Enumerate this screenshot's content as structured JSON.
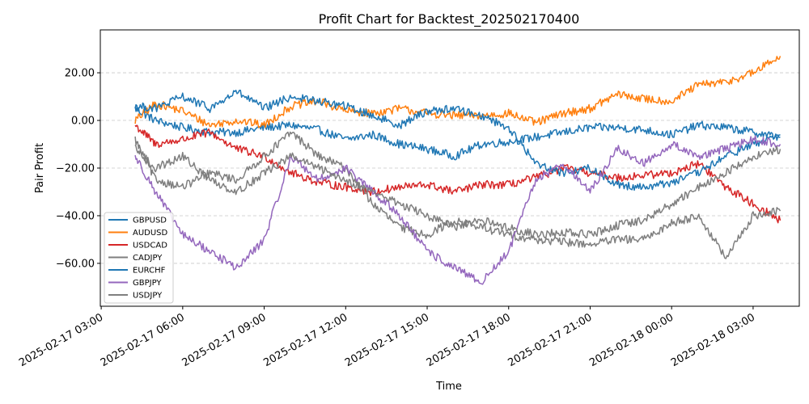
{
  "chart_data": {
    "type": "line",
    "title": "Profit Chart for Backtest_202502170400",
    "xlabel": "Time",
    "ylabel": "Pair Profit",
    "xlim": [
      "2025-02-17 02:58",
      "2025-02-18 04:42"
    ],
    "ylim": [
      -78,
      38
    ],
    "grid": "horizontal dashed",
    "legend_position": "lower-left",
    "x_ticks": [
      "2025-02-17 03:00",
      "2025-02-17 06:00",
      "2025-02-17 09:00",
      "2025-02-17 12:00",
      "2025-02-17 15:00",
      "2025-02-17 18:00",
      "2025-02-17 21:00",
      "2025-02-18 00:00",
      "2025-02-18 03:00"
    ],
    "y_ticks": [
      20,
      0,
      -20,
      -40,
      -60
    ],
    "y_tick_labels": [
      "20.00",
      "0.00",
      "−20.00",
      "−40.00",
      "−60.00"
    ],
    "series": [
      {
        "name": "GBPUSD",
        "color": "#1f77b4",
        "x": [
          "2025-02-17 04:15",
          "2025-02-17 05:00",
          "2025-02-17 06:00",
          "2025-02-17 07:00",
          "2025-02-17 08:00",
          "2025-02-17 09:00",
          "2025-02-17 10:00",
          "2025-02-17 11:00",
          "2025-02-17 12:00",
          "2025-02-17 13:00",
          "2025-02-17 14:00",
          "2025-02-17 15:00",
          "2025-02-17 16:00",
          "2025-02-17 17:00",
          "2025-02-17 18:00",
          "2025-02-17 19:00",
          "2025-02-17 20:00",
          "2025-02-17 21:00",
          "2025-02-17 22:00",
          "2025-02-17 23:00",
          "2025-02-18 00:00",
          "2025-02-18 01:00",
          "2025-02-18 02:00",
          "2025-02-18 03:00",
          "2025-02-18 04:00"
        ],
        "values": [
          5,
          0,
          -3,
          -5,
          -5,
          -3,
          -2,
          -4,
          -8,
          -6,
          -10,
          -12,
          -15,
          -10,
          -9,
          -7,
          -5,
          -3,
          -3,
          -4,
          -6,
          -2,
          -3,
          -5,
          -7
        ]
      },
      {
        "name": "AUDUSD",
        "color": "#ff7f0e",
        "x": [
          "2025-02-17 04:15",
          "2025-02-17 05:00",
          "2025-02-17 06:00",
          "2025-02-17 07:00",
          "2025-02-17 08:00",
          "2025-02-17 09:00",
          "2025-02-17 10:00",
          "2025-02-17 11:00",
          "2025-02-17 12:00",
          "2025-02-17 13:00",
          "2025-02-17 14:00",
          "2025-02-17 15:00",
          "2025-02-17 16:00",
          "2025-02-17 17:00",
          "2025-02-17 18:00",
          "2025-02-17 19:00",
          "2025-02-17 20:00",
          "2025-02-17 21:00",
          "2025-02-17 22:00",
          "2025-02-17 23:00",
          "2025-02-18 00:00",
          "2025-02-18 01:00",
          "2025-02-18 02:00",
          "2025-02-18 03:00",
          "2025-02-18 04:00"
        ],
        "values": [
          0,
          7,
          4,
          -2,
          0,
          -2,
          6,
          8,
          4,
          3,
          5,
          3,
          2,
          2,
          3,
          -1,
          3,
          5,
          11,
          9,
          8,
          15,
          16,
          20,
          27
        ]
      },
      {
        "name": "USDCAD",
        "color": "#d62728",
        "x": [
          "2025-02-17 04:15",
          "2025-02-17 05:00",
          "2025-02-17 06:00",
          "2025-02-17 07:00",
          "2025-02-17 08:00",
          "2025-02-17 09:00",
          "2025-02-17 10:00",
          "2025-02-17 11:00",
          "2025-02-17 12:00",
          "2025-02-17 13:00",
          "2025-02-17 14:00",
          "2025-02-17 15:00",
          "2025-02-17 16:00",
          "2025-02-17 17:00",
          "2025-02-17 18:00",
          "2025-02-17 19:00",
          "2025-02-17 20:00",
          "2025-02-17 21:00",
          "2025-02-17 22:00",
          "2025-02-17 23:00",
          "2025-02-18 00:00",
          "2025-02-18 01:00",
          "2025-02-18 02:00",
          "2025-02-18 03:00",
          "2025-02-18 04:00"
        ],
        "values": [
          -2,
          -10,
          -8,
          -5,
          -12,
          -15,
          -22,
          -26,
          -28,
          -30,
          -28,
          -27,
          -30,
          -27,
          -27,
          -24,
          -20,
          -22,
          -24,
          -23,
          -22,
          -18,
          -28,
          -35,
          -42
        ]
      },
      {
        "name": "CADJPY",
        "color": "#7f7f7f",
        "x": [
          "2025-02-17 04:15",
          "2025-02-17 05:00",
          "2025-02-17 06:00",
          "2025-02-17 07:00",
          "2025-02-17 08:00",
          "2025-02-17 09:00",
          "2025-02-17 10:00",
          "2025-02-17 11:00",
          "2025-02-17 12:00",
          "2025-02-17 13:00",
          "2025-02-17 14:00",
          "2025-02-17 15:00",
          "2025-02-17 16:00",
          "2025-02-17 17:00",
          "2025-02-17 18:00",
          "2025-02-17 19:00",
          "2025-02-17 20:00",
          "2025-02-17 21:00",
          "2025-02-17 22:00",
          "2025-02-17 23:00",
          "2025-02-18 00:00",
          "2025-02-18 01:00",
          "2025-02-18 02:00",
          "2025-02-18 03:00",
          "2025-02-18 04:00"
        ],
        "values": [
          -8,
          -25,
          -28,
          -22,
          -25,
          -15,
          -5,
          -15,
          -20,
          -35,
          -45,
          -48,
          -42,
          -45,
          -48,
          -50,
          -51,
          -52,
          -50,
          -50,
          -43,
          -40,
          -58,
          -40,
          -38
        ]
      },
      {
        "name": "EURCHF",
        "color": "#1f77b4",
        "x": [
          "2025-02-17 04:15",
          "2025-02-17 05:00",
          "2025-02-17 06:00",
          "2025-02-17 07:00",
          "2025-02-17 08:00",
          "2025-02-17 09:00",
          "2025-02-17 10:00",
          "2025-02-17 11:00",
          "2025-02-17 12:00",
          "2025-02-17 13:00",
          "2025-02-17 14:00",
          "2025-02-17 15:00",
          "2025-02-17 16:00",
          "2025-02-17 17:00",
          "2025-02-17 18:00",
          "2025-02-17 19:00",
          "2025-02-17 20:00",
          "2025-02-17 21:00",
          "2025-02-17 22:00",
          "2025-02-17 23:00",
          "2025-02-18 00:00",
          "2025-02-18 01:00",
          "2025-02-18 02:00",
          "2025-02-18 03:00",
          "2025-02-18 04:00"
        ],
        "values": [
          6,
          5,
          10,
          5,
          12,
          5,
          10,
          8,
          6,
          2,
          -2,
          4,
          5,
          2,
          -3,
          -18,
          -22,
          -20,
          -27,
          -28,
          -26,
          -22,
          -15,
          -10,
          -6
        ]
      },
      {
        "name": "GBPJPY",
        "color": "#9467bd",
        "x": [
          "2025-02-17 04:15",
          "2025-02-17 05:00",
          "2025-02-17 06:00",
          "2025-02-17 07:00",
          "2025-02-17 08:00",
          "2025-02-17 09:00",
          "2025-02-17 10:00",
          "2025-02-17 11:00",
          "2025-02-17 12:00",
          "2025-02-17 13:00",
          "2025-02-17 14:00",
          "2025-02-17 15:00",
          "2025-02-17 16:00",
          "2025-02-17 17:00",
          "2025-02-17 18:00",
          "2025-02-17 19:00",
          "2025-02-17 20:00",
          "2025-02-17 21:00",
          "2025-02-17 22:00",
          "2025-02-17 23:00",
          "2025-02-18 00:00",
          "2025-02-18 01:00",
          "2025-02-18 02:00",
          "2025-02-18 03:00",
          "2025-02-18 04:00"
        ],
        "values": [
          -15,
          -30,
          -48,
          -55,
          -62,
          -50,
          -15,
          -25,
          -20,
          -30,
          -40,
          -55,
          -62,
          -68,
          -55,
          -25,
          -18,
          -30,
          -12,
          -18,
          -10,
          -15,
          -12,
          -8,
          -10
        ]
      },
      {
        "name": "USDJPY",
        "color": "#7f7f7f",
        "x": [
          "2025-02-17 04:15",
          "2025-02-17 05:00",
          "2025-02-17 06:00",
          "2025-02-17 07:00",
          "2025-02-17 08:00",
          "2025-02-17 09:00",
          "2025-02-17 10:00",
          "2025-02-17 11:00",
          "2025-02-17 12:00",
          "2025-02-17 13:00",
          "2025-02-17 14:00",
          "2025-02-17 15:00",
          "2025-02-17 16:00",
          "2025-02-17 17:00",
          "2025-02-17 18:00",
          "2025-02-17 19:00",
          "2025-02-17 20:00",
          "2025-02-17 21:00",
          "2025-02-17 22:00",
          "2025-02-17 23:00",
          "2025-02-18 00:00",
          "2025-02-18 01:00",
          "2025-02-18 02:00",
          "2025-02-18 03:00",
          "2025-02-18 04:00"
        ],
        "values": [
          -12,
          -20,
          -15,
          -25,
          -30,
          -22,
          -15,
          -20,
          -25,
          -30,
          -35,
          -40,
          -45,
          -42,
          -45,
          -48,
          -47,
          -48,
          -44,
          -42,
          -35,
          -28,
          -22,
          -15,
          -12
        ]
      }
    ]
  }
}
